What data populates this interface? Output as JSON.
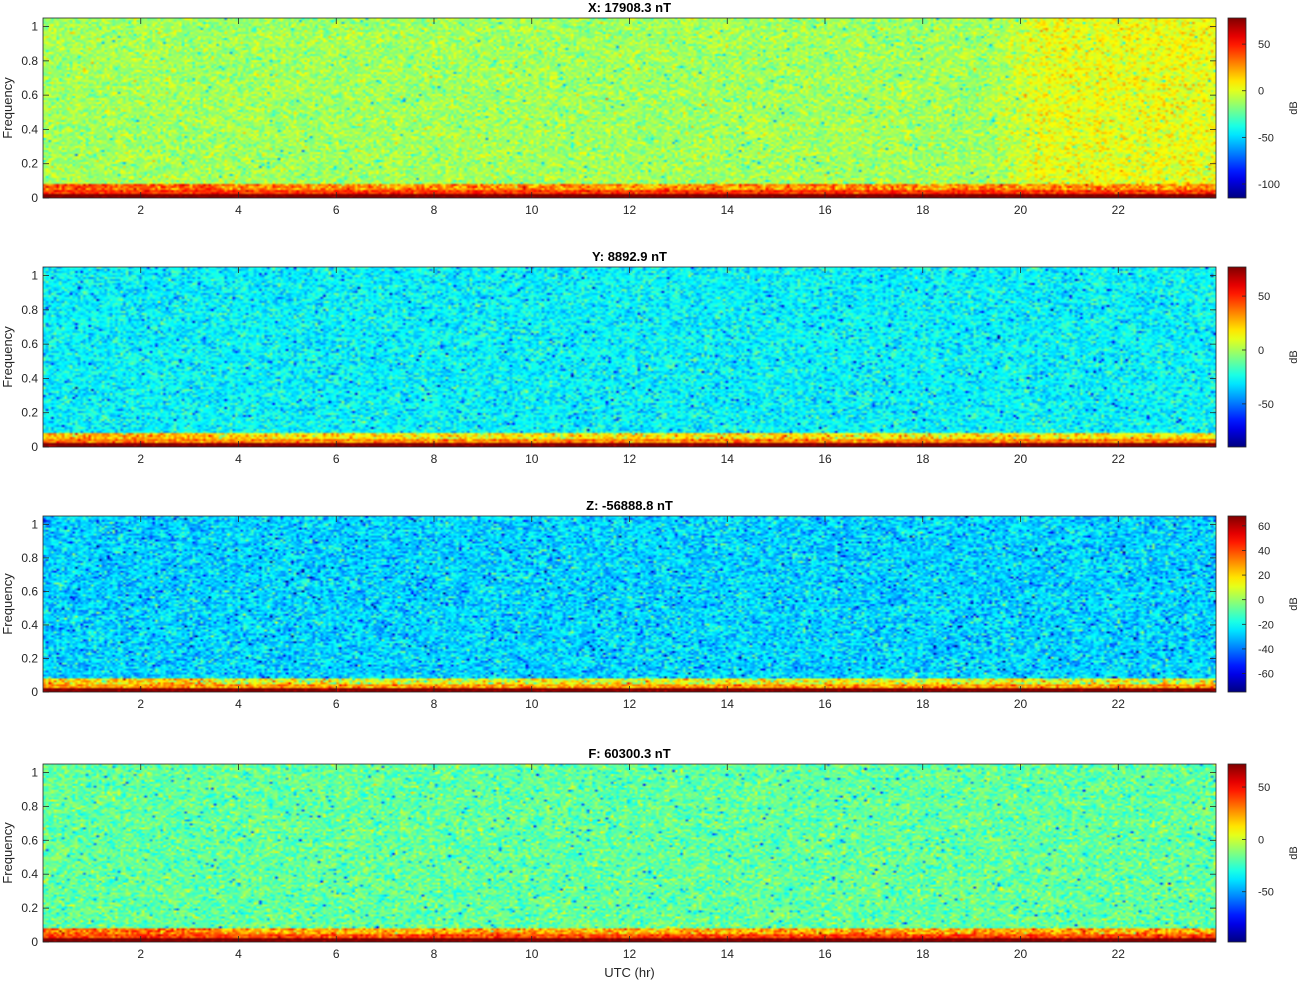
{
  "chart_data": [
    {
      "type": "heatmap",
      "title": "X: 17908.3 nT",
      "ylabel": "Frequency",
      "xlabel": "",
      "colorbar_label": "dB",
      "xlim": [
        0,
        24
      ],
      "ylim": [
        0,
        1.05
      ],
      "clim": [
        -115,
        78
      ],
      "xticks": [
        2,
        4,
        6,
        8,
        10,
        12,
        14,
        16,
        18,
        20,
        22
      ],
      "yticks": [
        0,
        0.2,
        0.4,
        0.6,
        0.8,
        1
      ],
      "cticks": [
        -100,
        -50,
        0,
        50
      ],
      "background_db": -12,
      "late_day_background_db": 2,
      "low_band_db": 45,
      "dc_db": 78
    },
    {
      "type": "heatmap",
      "title": "Y: 8892.9 nT",
      "ylabel": "Frequency",
      "xlabel": "",
      "colorbar_label": "dB",
      "xlim": [
        0,
        24
      ],
      "ylim": [
        0,
        1.05
      ],
      "clim": [
        -90,
        77
      ],
      "xticks": [
        2,
        4,
        6,
        8,
        10,
        12,
        14,
        16,
        18,
        20,
        22
      ],
      "yticks": [
        0,
        0.2,
        0.4,
        0.6,
        0.8,
        1
      ],
      "cticks": [
        -50,
        0,
        50
      ],
      "background_db": -28,
      "low_band_db": 35,
      "dc_db": 77
    },
    {
      "type": "heatmap",
      "title": "Z: -56888.8 nT",
      "ylabel": "Frequency",
      "xlabel": "",
      "colorbar_label": "dB",
      "xlim": [
        0,
        24
      ],
      "ylim": [
        0,
        1.05
      ],
      "clim": [
        -75,
        68
      ],
      "xticks": [
        2,
        4,
        6,
        8,
        10,
        12,
        14,
        16,
        18,
        20,
        22
      ],
      "yticks": [
        0,
        0.2,
        0.4,
        0.6,
        0.8,
        1
      ],
      "cticks": [
        -60,
        -40,
        -20,
        0,
        20,
        40,
        60
      ],
      "background_db": -27,
      "low_band_db": 28,
      "dc_db": 68
    },
    {
      "type": "heatmap",
      "title": "F: 60300.3 nT",
      "ylabel": "Frequency",
      "xlabel": "UTC (hr)",
      "colorbar_label": "dB",
      "xlim": [
        0,
        24
      ],
      "ylim": [
        0,
        1.05
      ],
      "clim": [
        -98,
        72
      ],
      "xticks": [
        2,
        4,
        6,
        8,
        10,
        12,
        14,
        16,
        18,
        20,
        22
      ],
      "yticks": [
        0,
        0.2,
        0.4,
        0.6,
        0.8,
        1
      ],
      "cticks": [
        -50,
        0,
        50
      ],
      "background_db": -18,
      "low_band_db": 40,
      "dc_db": 72
    }
  ]
}
